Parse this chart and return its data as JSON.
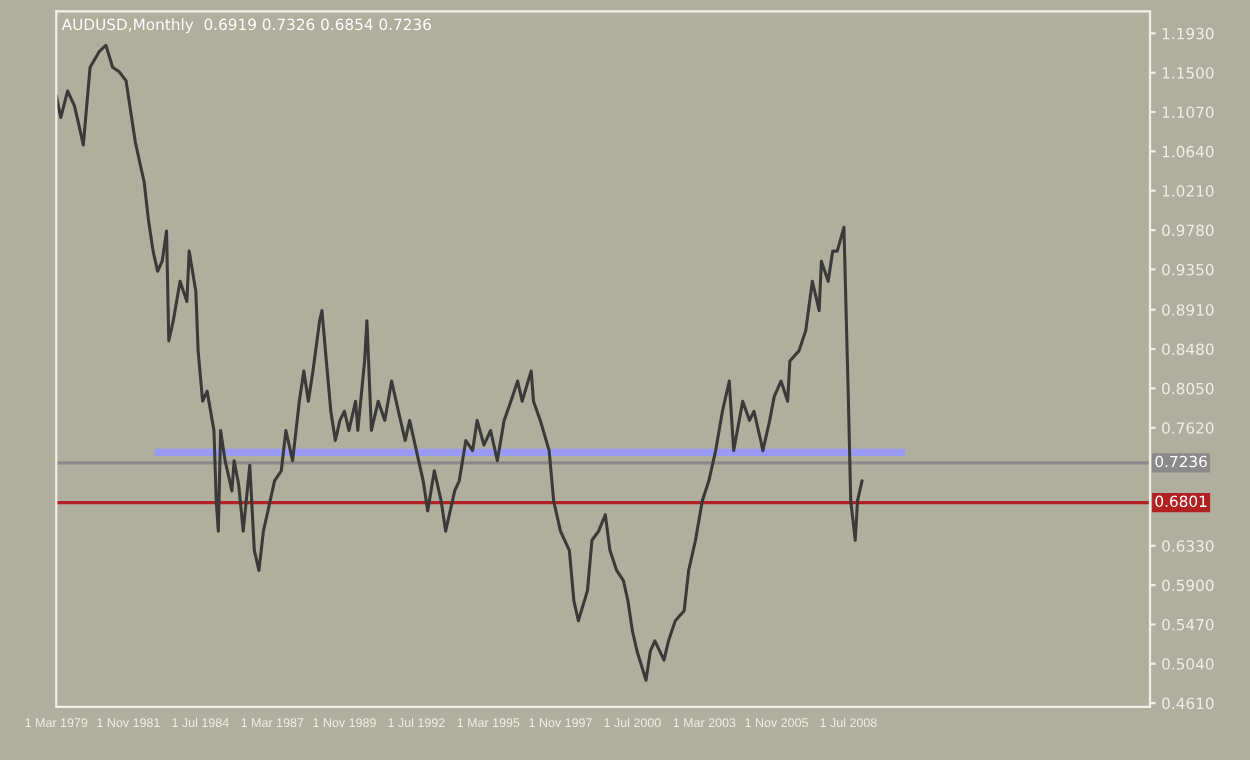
{
  "chart_data": {
    "type": "line",
    "title": "AUDUSD,Monthly  0.6919 0.7326 0.6854 0.7236",
    "x": [
      "1979-03",
      "1979-05",
      "1979-08",
      "1979-11",
      "1980-01",
      "1980-03",
      "1980-06",
      "1980-10",
      "1981-01",
      "1981-04",
      "1981-07",
      "1981-10",
      "1981-12",
      "1982-02",
      "1982-04",
      "1982-06",
      "1982-08",
      "1982-10",
      "1982-12",
      "1983-02",
      "1983-04",
      "1983-05",
      "1983-07",
      "1983-10",
      "1984-01",
      "1984-02",
      "1984-05",
      "1984-06",
      "1984-08",
      "1984-10",
      "1985-01",
      "1985-02",
      "1985-03",
      "1985-04",
      "1985-06",
      "1985-09",
      "1985-10",
      "1985-12",
      "1986-02",
      "1986-05",
      "1986-07",
      "1986-09",
      "1986-11",
      "1987-01",
      "1987-04",
      "1987-07",
      "1987-09",
      "1987-12",
      "1988-03",
      "1988-05",
      "1988-07",
      "1988-09",
      "1988-12",
      "1989-01",
      "1989-03",
      "1989-05",
      "1989-07",
      "1989-09",
      "1989-11",
      "1990-01",
      "1990-04",
      "1990-05",
      "1990-08",
      "1990-09",
      "1990-11",
      "1991-02",
      "1991-05",
      "1991-08",
      "1991-11",
      "1992-02",
      "1992-04",
      "1992-07",
      "1992-10",
      "1992-12",
      "1993-03",
      "1993-06",
      "1993-08",
      "1993-12",
      "1994-02",
      "1994-05",
      "1994-08",
      "1994-10",
      "1995-01",
      "1995-04",
      "1995-07",
      "1995-10",
      "1996-01",
      "1996-04",
      "1996-06",
      "1996-10",
      "1996-11",
      "1997-02",
      "1997-06",
      "1997-08",
      "1997-11",
      "1998-03",
      "1998-05",
      "1998-07",
      "1998-11",
      "1999-01",
      "1999-04",
      "1999-07",
      "1999-09",
      "1999-12",
      "2000-03",
      "2000-05",
      "2000-07",
      "2000-09",
      "2001-01",
      "2001-03",
      "2001-05",
      "2001-09",
      "2001-11",
      "2002-02",
      "2002-06",
      "2002-08",
      "2002-11",
      "2003-02",
      "2003-05",
      "2003-08",
      "2003-11",
      "2004-02",
      "2004-04",
      "2004-08",
      "2004-11",
      "2005-01",
      "2005-04",
      "2005-05",
      "2005-08",
      "2005-10",
      "2006-01",
      "2006-04",
      "2006-05",
      "2006-09",
      "2006-12",
      "2007-03",
      "2007-06",
      "2007-07",
      "2007-10",
      "2007-12",
      "2008-02",
      "2008-05",
      "2008-07",
      "2008-08",
      "2008-10",
      "2008-11",
      "2009-01"
    ],
    "series": [
      {
        "color": "#3a3a3a",
        "values": [
          1.125,
          1.101,
          1.13,
          1.114,
          1.093,
          1.071,
          1.156,
          1.173,
          1.18,
          1.156,
          1.151,
          1.141,
          1.108,
          1.075,
          1.053,
          1.031,
          0.988,
          0.955,
          0.933,
          0.944,
          0.977,
          0.857,
          0.879,
          0.922,
          0.9,
          0.955,
          0.911,
          0.846,
          0.791,
          0.802,
          0.759,
          0.682,
          0.649,
          0.759,
          0.726,
          0.693,
          0.726,
          0.7,
          0.649,
          0.721,
          0.628,
          0.606,
          0.649,
          0.671,
          0.704,
          0.715,
          0.759,
          0.726,
          0.791,
          0.824,
          0.791,
          0.824,
          0.879,
          0.89,
          0.835,
          0.78,
          0.748,
          0.77,
          0.78,
          0.759,
          0.791,
          0.759,
          0.835,
          0.879,
          0.759,
          0.791,
          0.77,
          0.813,
          0.78,
          0.748,
          0.77,
          0.737,
          0.704,
          0.671,
          0.715,
          0.682,
          0.649,
          0.693,
          0.704,
          0.748,
          0.737,
          0.77,
          0.743,
          0.759,
          0.726,
          0.77,
          0.791,
          0.813,
          0.791,
          0.824,
          0.791,
          0.77,
          0.737,
          0.682,
          0.649,
          0.628,
          0.573,
          0.551,
          0.584,
          0.639,
          0.649,
          0.667,
          0.628,
          0.606,
          0.595,
          0.573,
          0.54,
          0.518,
          0.486,
          0.518,
          0.529,
          0.508,
          0.529,
          0.551,
          0.562,
          0.606,
          0.639,
          0.682,
          0.704,
          0.737,
          0.78,
          0.813,
          0.737,
          0.791,
          0.77,
          0.78,
          0.748,
          0.737,
          0.77,
          0.796,
          0.813,
          0.791,
          0.835,
          0.846,
          0.868,
          0.922,
          0.89,
          0.944,
          0.922,
          0.955,
          0.955,
          0.981,
          0.791,
          0.682,
          0.639,
          0.682,
          0.704
        ]
      }
    ],
    "xlim": [
      "1979-03",
      "2019-09"
    ],
    "xticks": [
      {
        "value": "1979-03",
        "label": "1 Mar 1979"
      },
      {
        "value": "1981-11",
        "label": "1 Nov 1981"
      },
      {
        "value": "1984-07",
        "label": "1 Jul 1984"
      },
      {
        "value": "1987-03",
        "label": "1 Mar 1987"
      },
      {
        "value": "1989-11",
        "label": "1 Nov 1989"
      },
      {
        "value": "1992-07",
        "label": "1 Jul 1992"
      },
      {
        "value": "1995-03",
        "label": "1 Mar 1995"
      },
      {
        "value": "1997-11",
        "label": "1 Nov 1997"
      },
      {
        "value": "2000-07",
        "label": "1 Jul 2000"
      },
      {
        "value": "2003-03",
        "label": "1 Mar 2003"
      },
      {
        "value": "2005-11",
        "label": "1 Nov 2005"
      },
      {
        "value": "2008-07",
        "label": "1 Jul 2008"
      }
    ],
    "ylim": [
      0.457,
      1.217
    ],
    "yticks": [
      {
        "value": 1.193,
        "label": "1.1930"
      },
      {
        "value": 1.15,
        "label": "1.1500"
      },
      {
        "value": 1.107,
        "label": "1.1070"
      },
      {
        "value": 1.064,
        "label": "1.0640"
      },
      {
        "value": 1.021,
        "label": "1.0210"
      },
      {
        "value": 0.978,
        "label": "0.9780"
      },
      {
        "value": 0.935,
        "label": "0.9350"
      },
      {
        "value": 0.891,
        "label": "0.8910"
      },
      {
        "value": 0.848,
        "label": "0.8480"
      },
      {
        "value": 0.805,
        "label": "0.8050"
      },
      {
        "value": 0.762,
        "label": "0.7620"
      },
      {
        "value": 0.633,
        "label": "0.6330"
      },
      {
        "value": 0.59,
        "label": "0.5900"
      },
      {
        "value": 0.547,
        "label": "0.5470"
      },
      {
        "value": 0.504,
        "label": "0.5040"
      },
      {
        "value": 0.461,
        "label": "0.4610"
      }
    ],
    "ref_lines": [
      {
        "axis": "y",
        "value": 0.7236,
        "label": "0.7236",
        "color": "#8a8a8a"
      },
      {
        "axis": "y",
        "value": 0.6801,
        "label": "0.6801",
        "color": "#b22222"
      }
    ],
    "bands": [
      {
        "axis": "y",
        "from": 0.731,
        "to": 0.739,
        "color": "#9a9af5"
      }
    ],
    "grid": false,
    "legend": false
  }
}
